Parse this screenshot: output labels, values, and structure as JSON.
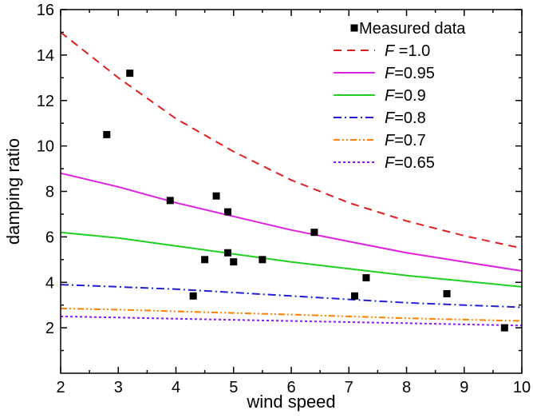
{
  "chart_data": {
    "type": "scatter",
    "xlabel": "wind speed",
    "ylabel": "damping ratio",
    "xlim": [
      2,
      10
    ],
    "ylim": [
      0,
      16
    ],
    "xticks": [
      2,
      3,
      4,
      5,
      6,
      7,
      8,
      9,
      10
    ],
    "yticks": [
      2,
      4,
      6,
      8,
      10,
      12,
      14,
      16
    ],
    "grid": false,
    "legend_position": "top-right",
    "scatter": {
      "name": "Measured data",
      "color": "#000000",
      "points": [
        {
          "x": 2.8,
          "y": 10.5
        },
        {
          "x": 3.2,
          "y": 13.2
        },
        {
          "x": 3.9,
          "y": 7.6
        },
        {
          "x": 4.3,
          "y": 3.4
        },
        {
          "x": 4.5,
          "y": 5.0
        },
        {
          "x": 4.7,
          "y": 7.8
        },
        {
          "x": 4.9,
          "y": 7.1
        },
        {
          "x": 4.9,
          "y": 5.3
        },
        {
          "x": 5.0,
          "y": 4.9
        },
        {
          "x": 5.5,
          "y": 5.0
        },
        {
          "x": 6.4,
          "y": 6.2
        },
        {
          "x": 7.1,
          "y": 3.4
        },
        {
          "x": 7.3,
          "y": 4.2
        },
        {
          "x": 8.7,
          "y": 3.5
        },
        {
          "x": 9.7,
          "y": 2.0
        }
      ]
    },
    "series": [
      {
        "legend_var": "F",
        "legend_rest": " =1.0",
        "color": "#e02020",
        "dash": "10,7",
        "x": [
          2,
          3,
          4,
          5,
          6,
          7,
          8,
          9,
          10
        ],
        "y": [
          15.0,
          13.0,
          11.2,
          9.75,
          8.5,
          7.5,
          6.7,
          6.05,
          5.5
        ]
      },
      {
        "legend_var": "F",
        "legend_rest": "=0.95",
        "color": "#e020e0",
        "dash": "",
        "x": [
          2,
          3,
          4,
          5,
          6,
          7,
          8,
          9,
          10
        ],
        "y": [
          8.8,
          8.2,
          7.5,
          6.9,
          6.3,
          5.8,
          5.3,
          4.9,
          4.5
        ]
      },
      {
        "legend_var": "F",
        "legend_rest": "=0.9",
        "color": "#20d020",
        "dash": "",
        "x": [
          2,
          3,
          4,
          5,
          6,
          7,
          8,
          9,
          10
        ],
        "y": [
          6.2,
          5.95,
          5.6,
          5.25,
          4.9,
          4.6,
          4.3,
          4.05,
          3.8
        ]
      },
      {
        "legend_var": "F",
        "legend_rest": "=0.8",
        "color": "#2020d0",
        "dash": "10,4,2,4",
        "x": [
          2,
          3,
          4,
          5,
          6,
          7,
          8,
          9,
          10
        ],
        "y": [
          3.9,
          3.8,
          3.7,
          3.55,
          3.4,
          3.25,
          3.1,
          3.0,
          2.9
        ]
      },
      {
        "legend_var": "F",
        "legend_rest": "=0.7",
        "color": "#ff8000",
        "dash": "8,3,2,3,2,3",
        "x": [
          2,
          3,
          4,
          5,
          6,
          7,
          8,
          9,
          10
        ],
        "y": [
          2.85,
          2.8,
          2.72,
          2.65,
          2.58,
          2.5,
          2.42,
          2.36,
          2.3
        ]
      },
      {
        "legend_var": "F",
        "legend_rest": "=0.65",
        "color": "#8020e0",
        "dash": "3,3",
        "x": [
          2,
          3,
          4,
          5,
          6,
          7,
          8,
          9,
          10
        ],
        "y": [
          2.5,
          2.45,
          2.4,
          2.35,
          2.3,
          2.25,
          2.2,
          2.15,
          2.1
        ]
      }
    ]
  }
}
